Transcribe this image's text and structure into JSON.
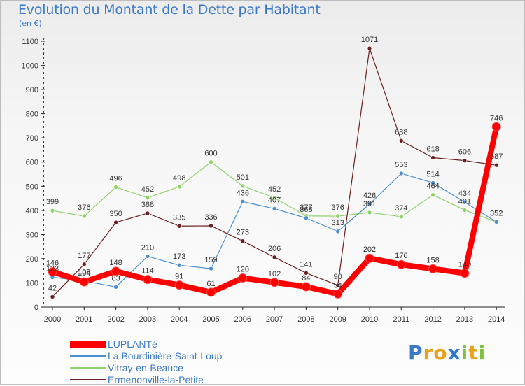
{
  "title": "Evolution du Montant de la Dette par Habitant",
  "unit": "(en €)",
  "logo": {
    "text": "Proxiti",
    "letters": [
      {
        "ch": "P",
        "color": "#3a79c7"
      },
      {
        "ch": "r",
        "color": "#e8a21c"
      },
      {
        "ch": "o",
        "color": "#e8a21c"
      },
      {
        "ch": "x",
        "color": "#2b7bd0"
      },
      {
        "ch": "i",
        "color": "#7cc142"
      },
      {
        "ch": "t",
        "color": "#e8a21c"
      },
      {
        "ch": "i",
        "color": "#7cc142"
      }
    ]
  },
  "chart_data": {
    "type": "line",
    "title": "Evolution du Montant de la Dette par Habitant",
    "ylabel": "(en €)",
    "xlabel": "",
    "x": [
      "2000",
      "2001",
      "2002",
      "2003",
      "2004",
      "2005",
      "2006",
      "2007",
      "2008",
      "2009",
      "2010",
      "2011",
      "2012",
      "2013",
      "2014"
    ],
    "ylim": [
      0,
      1100
    ],
    "yticks": [
      0,
      100,
      200,
      300,
      400,
      500,
      600,
      700,
      800,
      900,
      1000,
      1100
    ],
    "grid": false,
    "legend_position": "bottom-left",
    "series": [
      {
        "name": "LUPLANTé",
        "color": "#ff0000",
        "values": [
          146,
          104,
          148,
          114,
          91,
          61,
          120,
          102,
          84,
          54,
          202,
          176,
          158,
          140,
          746
        ],
        "labels": [
          "146",
          "104",
          "148",
          "114",
          "91",
          "61",
          "120",
          "102",
          "84",
          "54",
          "202",
          "176",
          "158",
          "140",
          "746"
        ]
      },
      {
        "name": "La Bourdinière-Saint-Loup",
        "color": "#4a8fd0",
        "values": [
          123,
          108,
          83,
          210,
          173,
          159,
          436,
          407,
          368,
          313,
          426,
          553,
          514,
          434,
          352
        ],
        "labels": [
          "123",
          "108",
          "83",
          "210",
          "173",
          "159",
          "436",
          "407",
          "368",
          "313",
          "426",
          "553",
          "514",
          "434",
          "352"
        ]
      },
      {
        "name": "Vitray-en-Beauce",
        "color": "#8ed36a",
        "values": [
          399,
          376,
          496,
          452,
          498,
          600,
          501,
          452,
          377,
          376,
          391,
          374,
          464,
          401,
          352
        ],
        "labels": [
          "399",
          "376",
          "496",
          "452",
          "498",
          "600",
          "501",
          "452",
          "377",
          "376",
          "391",
          "374",
          "464",
          "401",
          "352"
        ]
      },
      {
        "name": "Ermenonville-la-Petite",
        "color": "#6b1f1f",
        "values": [
          42,
          177,
          350,
          388,
          335,
          336,
          273,
          206,
          141,
          90,
          1071,
          688,
          618,
          606,
          587
        ],
        "labels": [
          "42",
          "177",
          "350",
          "388",
          "335",
          "336",
          "273",
          "206",
          "141",
          "90",
          "1071",
          "688",
          "618",
          "606",
          "587"
        ]
      }
    ]
  }
}
